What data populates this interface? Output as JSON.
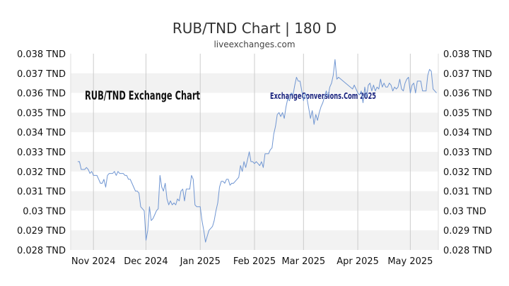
{
  "chart_data": {
    "type": "line",
    "title": "RUB/TND Chart | 180 D",
    "subtitle": "liveexchanges.com",
    "overlay_left": "RUB/TND Exchange Chart",
    "overlay_right": "ExchangeConversions.Com 2025",
    "xlabel": "",
    "ylabel": "",
    "ylim": [
      0.028,
      0.038
    ],
    "y_ticks": [
      {
        "value": 0.028,
        "label": "0.028 TND"
      },
      {
        "value": 0.029,
        "label": "0.029 TND"
      },
      {
        "value": 0.03,
        "label": "0.03 TND"
      },
      {
        "value": 0.031,
        "label": "0.031 TND"
      },
      {
        "value": 0.032,
        "label": "0.032 TND"
      },
      {
        "value": 0.033,
        "label": "0.033 TND"
      },
      {
        "value": 0.034,
        "label": "0.034 TND"
      },
      {
        "value": 0.035,
        "label": "0.035 TND"
      },
      {
        "value": 0.036,
        "label": "0.036 TND"
      },
      {
        "value": 0.037,
        "label": "0.037 TND"
      },
      {
        "value": 0.038,
        "label": "0.038 TND"
      }
    ],
    "x_ticks": [
      {
        "label": "Nov 2024",
        "day": 13
      },
      {
        "label": "Dec 2024",
        "day": 43
      },
      {
        "label": "Jan 2025",
        "day": 74
      },
      {
        "label": "Feb 2025",
        "day": 105
      },
      {
        "label": "Mar 2025",
        "day": 133
      },
      {
        "label": "Apr 2025",
        "day": 164
      },
      {
        "label": "May 2025",
        "day": 194
      }
    ],
    "x_domain": [
      0,
      210
    ],
    "grid": true,
    "band_color": "#f2f2f2",
    "line_color": "#7096d2",
    "series": [
      {
        "points": [
          [
            4,
            0.0325
          ],
          [
            5,
            0.0325
          ],
          [
            6,
            0.0321
          ],
          [
            7,
            0.0321
          ],
          [
            8,
            0.0321
          ],
          [
            9,
            0.0322
          ],
          [
            10,
            0.0321
          ],
          [
            11,
            0.0319
          ],
          [
            12,
            0.032
          ],
          [
            13,
            0.0318
          ],
          [
            14,
            0.0318
          ],
          [
            15,
            0.0318
          ],
          [
            16,
            0.0316
          ],
          [
            17,
            0.0314
          ],
          [
            18,
            0.0314
          ],
          [
            19,
            0.0316
          ],
          [
            20,
            0.0312
          ],
          [
            21,
            0.0318
          ],
          [
            22,
            0.0319
          ],
          [
            23,
            0.0319
          ],
          [
            24,
            0.0319
          ],
          [
            25,
            0.032
          ],
          [
            26,
            0.0318
          ],
          [
            27,
            0.032
          ],
          [
            28,
            0.0319
          ],
          [
            29,
            0.0319
          ],
          [
            30,
            0.0319
          ],
          [
            31,
            0.0318
          ],
          [
            32,
            0.0318
          ],
          [
            33,
            0.0316
          ],
          [
            34,
            0.0316
          ],
          [
            35,
            0.0314
          ],
          [
            36,
            0.0312
          ],
          [
            37,
            0.031
          ],
          [
            38,
            0.031
          ],
          [
            39,
            0.0309
          ],
          [
            40,
            0.0302
          ],
          [
            41,
            0.0301
          ],
          [
            42,
            0.03
          ],
          [
            43,
            0.0285
          ],
          [
            44,
            0.029
          ],
          [
            45,
            0.0302
          ],
          [
            46,
            0.0295
          ],
          [
            47,
            0.0296
          ],
          [
            48,
            0.0298
          ],
          [
            49,
            0.03
          ],
          [
            50,
            0.0301
          ],
          [
            51,
            0.0318
          ],
          [
            52,
            0.0312
          ],
          [
            53,
            0.031
          ],
          [
            54,
            0.0314
          ],
          [
            55,
            0.0306
          ],
          [
            56,
            0.0303
          ],
          [
            57,
            0.0305
          ],
          [
            58,
            0.0303
          ],
          [
            59,
            0.0304
          ],
          [
            60,
            0.0303
          ],
          [
            61,
            0.0306
          ],
          [
            62,
            0.0305
          ],
          [
            63,
            0.031
          ],
          [
            64,
            0.0311
          ],
          [
            65,
            0.0305
          ],
          [
            66,
            0.0311
          ],
          [
            67,
            0.0311
          ],
          [
            68,
            0.0311
          ],
          [
            69,
            0.0318
          ],
          [
            70,
            0.0316
          ],
          [
            71,
            0.0303
          ],
          [
            72,
            0.0302
          ],
          [
            73,
            0.0302
          ],
          [
            74,
            0.0302
          ],
          [
            75,
            0.0295
          ],
          [
            76,
            0.029
          ],
          [
            77,
            0.0284
          ],
          [
            78,
            0.0287
          ],
          [
            79,
            0.029
          ],
          [
            80,
            0.0291
          ],
          [
            81,
            0.0292
          ],
          [
            82,
            0.0295
          ],
          [
            83,
            0.03
          ],
          [
            84,
            0.0304
          ],
          [
            85,
            0.0312
          ],
          [
            86,
            0.0315
          ],
          [
            87,
            0.0315
          ],
          [
            88,
            0.0314
          ],
          [
            89,
            0.0316
          ],
          [
            90,
            0.0316
          ],
          [
            91,
            0.0313
          ],
          [
            92,
            0.0314
          ],
          [
            93,
            0.0314
          ],
          [
            94,
            0.0315
          ],
          [
            95,
            0.0316
          ],
          [
            96,
            0.0317
          ],
          [
            97,
            0.0323
          ],
          [
            98,
            0.032
          ],
          [
            99,
            0.0325
          ],
          [
            100,
            0.0322
          ],
          [
            101,
            0.0326
          ],
          [
            102,
            0.033
          ],
          [
            103,
            0.0325
          ],
          [
            104,
            0.0325
          ],
          [
            105,
            0.0324
          ],
          [
            106,
            0.0325
          ],
          [
            107,
            0.0324
          ],
          [
            108,
            0.0323
          ],
          [
            109,
            0.0325
          ],
          [
            110,
            0.0322
          ],
          [
            111,
            0.0329
          ],
          [
            112,
            0.0329
          ],
          [
            113,
            0.0329
          ],
          [
            114,
            0.0331
          ],
          [
            115,
            0.0332
          ],
          [
            116,
            0.0339
          ],
          [
            117,
            0.0343
          ],
          [
            118,
            0.0349
          ],
          [
            119,
            0.035
          ],
          [
            120,
            0.0348
          ],
          [
            121,
            0.035
          ],
          [
            122,
            0.0347
          ],
          [
            123,
            0.0353
          ],
          [
            124,
            0.0357
          ],
          [
            125,
            0.0356
          ],
          [
            126,
            0.036
          ],
          [
            127,
            0.0359
          ],
          [
            128,
            0.0364
          ],
          [
            129,
            0.0368
          ],
          [
            130,
            0.0366
          ],
          [
            131,
            0.0366
          ],
          [
            132,
            0.0361
          ],
          [
            133,
            0.0356
          ],
          [
            134,
            0.036
          ],
          [
            135,
            0.0357
          ],
          [
            136,
            0.0352
          ],
          [
            137,
            0.0347
          ],
          [
            138,
            0.0351
          ],
          [
            139,
            0.0344
          ],
          [
            140,
            0.0349
          ],
          [
            141,
            0.0346
          ],
          [
            142,
            0.035
          ],
          [
            143,
            0.0353
          ],
          [
            144,
            0.0355
          ],
          [
            145,
            0.0358
          ],
          [
            146,
            0.0361
          ],
          [
            147,
            0.0358
          ],
          [
            148,
            0.0363
          ],
          [
            149,
            0.0365
          ],
          [
            150,
            0.0369
          ],
          [
            151,
            0.0377
          ],
          [
            152,
            0.0367
          ],
          [
            153,
            0.0368
          ],
          [
            161,
            0.0362
          ],
          [
            162,
            0.0364
          ],
          [
            163,
            0.0362
          ],
          [
            164,
            0.036
          ],
          [
            165,
            0.0359
          ],
          [
            166,
            0.0361
          ],
          [
            167,
            0.0355
          ],
          [
            168,
            0.0363
          ],
          [
            169,
            0.0358
          ],
          [
            170,
            0.0364
          ],
          [
            171,
            0.0365
          ],
          [
            172,
            0.0361
          ],
          [
            173,
            0.0364
          ],
          [
            174,
            0.0361
          ],
          [
            175,
            0.0363
          ],
          [
            176,
            0.0362
          ],
          [
            177,
            0.0367
          ],
          [
            178,
            0.0363
          ],
          [
            179,
            0.0365
          ],
          [
            180,
            0.0363
          ],
          [
            181,
            0.0363
          ],
          [
            182,
            0.0365
          ],
          [
            183,
            0.0364
          ],
          [
            184,
            0.0361
          ],
          [
            185,
            0.0363
          ],
          [
            186,
            0.0362
          ],
          [
            187,
            0.0363
          ],
          [
            188,
            0.0367
          ],
          [
            189,
            0.0362
          ],
          [
            190,
            0.0361
          ],
          [
            191,
            0.0365
          ],
          [
            192,
            0.0367
          ],
          [
            193,
            0.0368
          ],
          [
            194,
            0.036
          ],
          [
            195,
            0.0364
          ],
          [
            196,
            0.0365
          ],
          [
            197,
            0.036
          ],
          [
            198,
            0.0366
          ],
          [
            199,
            0.0366
          ],
          [
            200,
            0.0366
          ],
          [
            201,
            0.0361
          ],
          [
            202,
            0.0361
          ],
          [
            203,
            0.0361
          ],
          [
            204,
            0.0369
          ],
          [
            205,
            0.0372
          ],
          [
            206,
            0.0371
          ],
          [
            207,
            0.0362
          ],
          [
            208,
            0.0361
          ],
          [
            209,
            0.036
          ]
        ]
      }
    ]
  }
}
